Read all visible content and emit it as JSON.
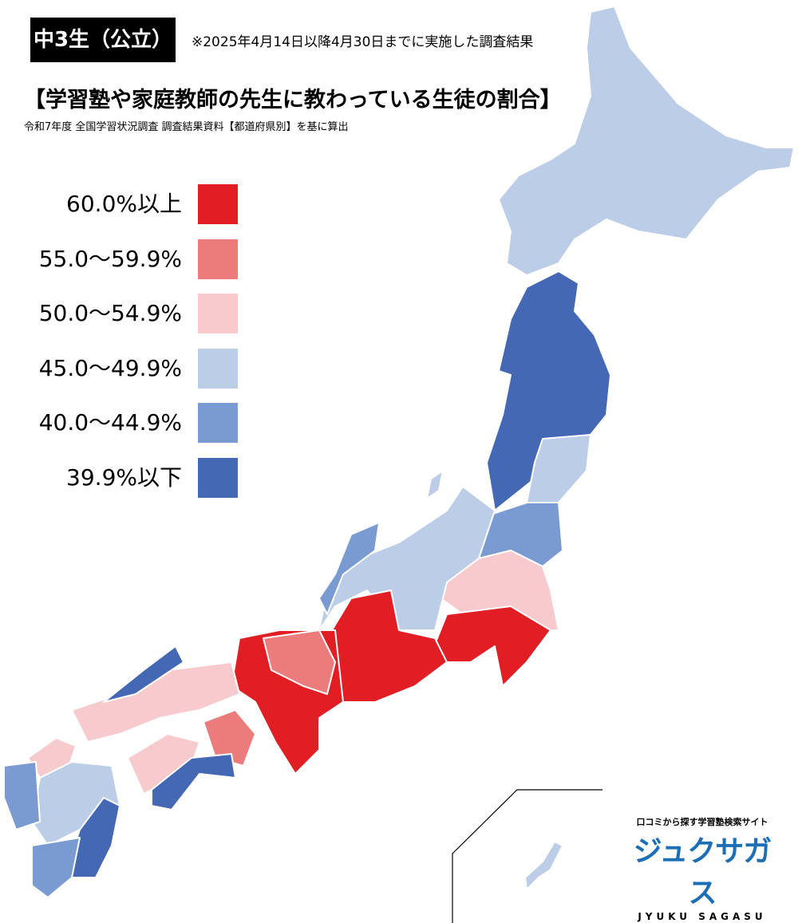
{
  "header": {
    "badge": "中3生（公立）",
    "note": "※2025年4月14日以降4月30日までに実施した調査結果",
    "title": "【学習塾や家庭教師の先生に教わっている生徒の割合】",
    "subtitle": "令和7年度 全国学習状況調査 調査結果資料【都道府県別】を基に算出"
  },
  "legend": {
    "items": [
      {
        "label": "60.0%以上",
        "color": "#e01e24"
      },
      {
        "label": "55.0～59.9%",
        "color": "#ec7b7c"
      },
      {
        "label": "50.0～54.9%",
        "color": "#f7cacd"
      },
      {
        "label": "45.0～49.9%",
        "color": "#bccde8"
      },
      {
        "label": "40.0～44.9%",
        "color": "#7a9bd2"
      },
      {
        "label": "39.9%以下",
        "color": "#4468b4"
      }
    ]
  },
  "logo": {
    "tagline": "口コミから探す学習塾検索サイト",
    "name": "ジュクサガス",
    "romaji": "JYUKU SAGASU"
  }
}
